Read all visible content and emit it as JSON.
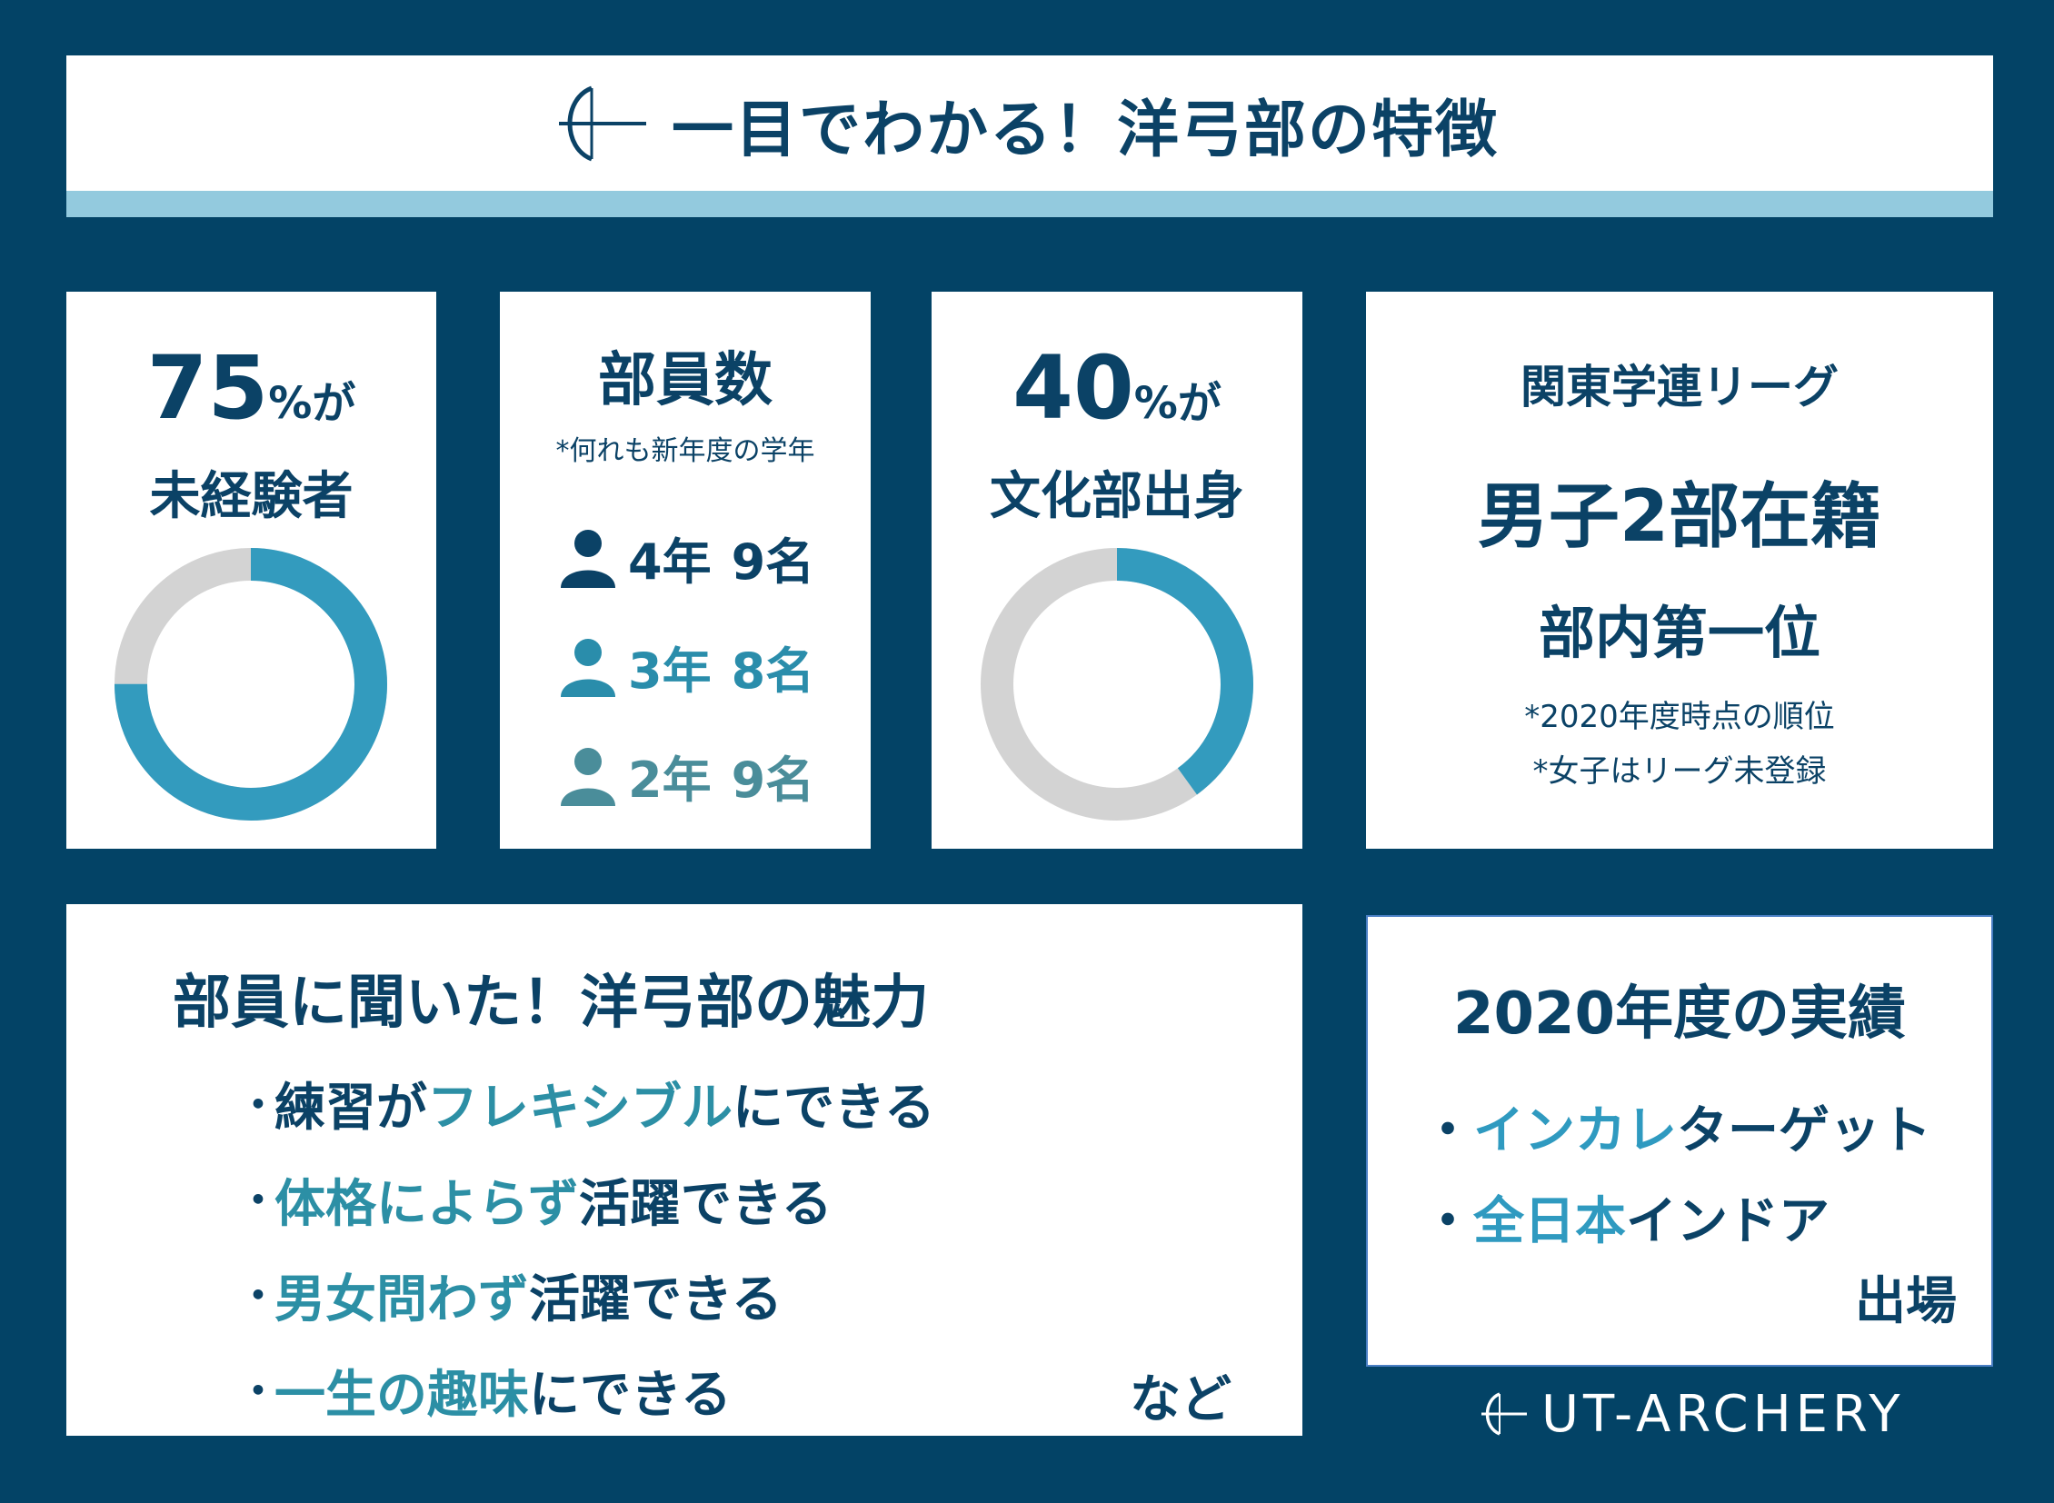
{
  "header": {
    "title": "一目でわかる！洋弓部の特徴",
    "logo_icon": "bow-and-arrow-icon"
  },
  "experience": {
    "percent": "75",
    "percent_suffix": "%が",
    "label": "未経験者",
    "donut_value": 0.75,
    "colors": {
      "fill": "#339bbe",
      "rest": "#d3d3d3"
    }
  },
  "members": {
    "title": "部員数",
    "note": "*何れも新年度の学年",
    "rows": [
      {
        "grade": "4年",
        "count": "9名",
        "color": "#0b4266",
        "icon": "person-icon"
      },
      {
        "grade": "3年",
        "count": "8名",
        "color": "#2a8dab",
        "icon": "person-icon"
      },
      {
        "grade": "2年",
        "count": "9名",
        "color": "#4a8d9a",
        "icon": "person-icon"
      }
    ]
  },
  "culture": {
    "percent": "40",
    "percent_suffix": "%が",
    "label": "文化部出身",
    "donut_value": 0.4,
    "colors": {
      "fill": "#339bbe",
      "rest": "#d3d3d3"
    }
  },
  "league": {
    "title": "関東学連リーグ",
    "division": "男子2部在籍",
    "rank": "部内第一位",
    "notes": [
      "*2020年度時点の順位",
      "*女子はリーグ未登録"
    ]
  },
  "appeal": {
    "title": "部員に聞いた！洋弓部の魅力",
    "bullet": "・",
    "items": [
      {
        "pre": "練習が",
        "hl": "フレキシブル",
        "post": "にできる"
      },
      {
        "pre": "",
        "hl": "体格によらず",
        "post": "活躍できる"
      },
      {
        "pre": "",
        "hl": "男女問わず",
        "post": "活躍できる"
      },
      {
        "pre": "",
        "hl": "一生の趣味",
        "post": "にできる"
      }
    ],
    "etc": "など"
  },
  "results": {
    "title": "2020年度の実績",
    "bullet": "・",
    "items": [
      {
        "hl": "インカレ",
        "post": "ターゲット"
      },
      {
        "hl": "全日本",
        "post": "インドア"
      }
    ],
    "footer": "出場"
  },
  "brand": {
    "name": "UT-ARCHERY",
    "logo_icon": "bow-and-arrow-icon"
  },
  "colors": {
    "background": "#034366",
    "card": "#ffffff",
    "accent_strip": "#93cade",
    "text": "#0b4266",
    "highlight": "#2c8fa5"
  }
}
